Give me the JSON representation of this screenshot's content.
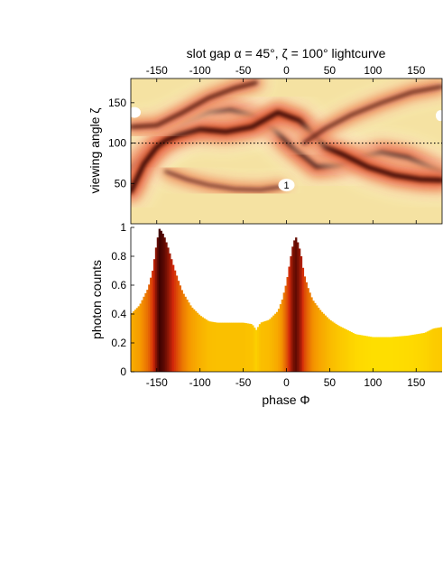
{
  "chart_data": [
    {
      "type": "heatmap",
      "title": "slot gap α = 45°, ζ = 100° lightcurve",
      "xlim": [
        -180,
        180
      ],
      "ylim": [
        0,
        180
      ],
      "xticks": [
        -150,
        -100,
        -50,
        0,
        50,
        100,
        150
      ],
      "yticks": [
        50,
        100,
        150
      ],
      "xlabel": "",
      "ylabel": "viewing angle ζ",
      "reference_line": {
        "y": 100,
        "style": "dotted"
      },
      "annotations": [
        {
          "text": "1",
          "x": 0,
          "y": 48
        }
      ],
      "colors": {
        "background": "#f5e2a2",
        "mid": "#e03a10",
        "peak": "#2a0000"
      },
      "caustic_curves": [
        {
          "points": [
            [
              -180,
              68
            ],
            [
              -160,
              88
            ],
            [
              -140,
              105
            ],
            [
              -115,
              125
            ],
            [
              -90,
              138
            ],
            [
              -65,
              141
            ],
            [
              -40,
              134
            ],
            [
              -15,
              118
            ],
            [
              5,
              97
            ],
            [
              20,
              84
            ],
            [
              35,
              71
            ],
            [
              60,
              73
            ],
            [
              85,
              82
            ],
            [
              110,
              88
            ],
            [
              140,
              82
            ],
            [
              165,
              70
            ],
            [
              180,
              63
            ]
          ]
        },
        {
          "points": [
            [
              -180,
              40
            ],
            [
              -165,
              74
            ],
            [
              -150,
              95
            ],
            [
              -140,
              103
            ],
            [
              -125,
              110
            ],
            [
              -100,
              117
            ],
            [
              -70,
              114
            ],
            [
              -40,
              120
            ],
            [
              -10,
              138
            ],
            [
              15,
              128
            ],
            [
              30,
              112
            ],
            [
              45,
              95
            ],
            [
              65,
              86
            ],
            [
              95,
              70
            ],
            [
              125,
              60
            ],
            [
              155,
              55
            ],
            [
              180,
              54
            ]
          ]
        },
        {
          "points": [
            [
              -140,
              65
            ],
            [
              -115,
              55
            ],
            [
              -90,
              48
            ],
            [
              -60,
              43
            ],
            [
              -30,
              42
            ],
            [
              -5,
              46
            ]
          ]
        },
        {
          "points": [
            [
              20,
              100
            ],
            [
              45,
              118
            ],
            [
              75,
              135
            ],
            [
              110,
              150
            ],
            [
              145,
              163
            ],
            [
              180,
              170
            ]
          ]
        },
        {
          "points": [
            [
              -180,
              120
            ],
            [
              -150,
              122
            ],
            [
              -120,
              138
            ],
            [
              -90,
              156
            ],
            [
              -60,
              168
            ],
            [
              -35,
              175
            ]
          ]
        }
      ]
    },
    {
      "type": "bar",
      "xlim": [
        -180,
        180
      ],
      "ylim": [
        0,
        1
      ],
      "xticks": [
        -150,
        -100,
        -50,
        0,
        50,
        100,
        150
      ],
      "yticks": [
        0,
        0.2,
        0.4,
        0.6,
        0.8,
        1
      ],
      "xlabel": "phase Φ",
      "ylabel": "photon counts",
      "x": [
        -180,
        -170,
        -160,
        -155,
        -150,
        -147,
        -144,
        -141,
        -138,
        -135,
        -130,
        -125,
        -120,
        -110,
        -100,
        -90,
        -80,
        -70,
        -60,
        -50,
        -40,
        -35,
        -30,
        -20,
        -10,
        -5,
        0,
        5,
        8,
        11,
        14,
        17,
        20,
        25,
        30,
        40,
        50,
        60,
        80,
        100,
        120,
        140,
        160,
        170,
        180
      ],
      "values": [
        0.4,
        0.46,
        0.58,
        0.7,
        0.9,
        0.99,
        0.97,
        0.93,
        0.88,
        0.82,
        0.72,
        0.63,
        0.55,
        0.45,
        0.39,
        0.35,
        0.34,
        0.34,
        0.34,
        0.34,
        0.33,
        0.29,
        0.34,
        0.36,
        0.42,
        0.5,
        0.62,
        0.8,
        0.9,
        0.93,
        0.88,
        0.8,
        0.68,
        0.58,
        0.5,
        0.42,
        0.36,
        0.32,
        0.26,
        0.24,
        0.24,
        0.25,
        0.27,
        0.3,
        0.31
      ],
      "colors": {
        "low": "#ffe400",
        "high": "#3a0000"
      }
    }
  ]
}
